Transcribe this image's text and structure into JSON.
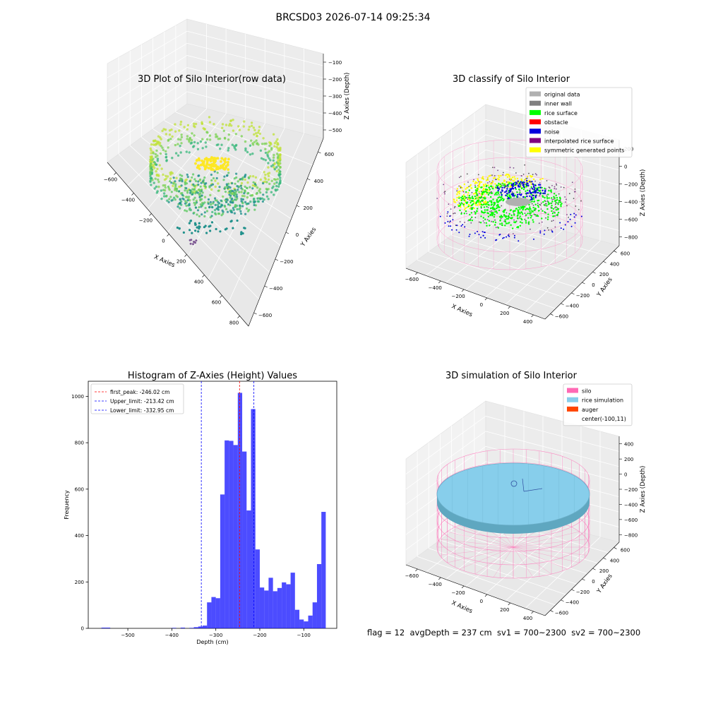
{
  "figure": {
    "title": "BRCSD03 2026-07-14 09:25:34",
    "footer": "flag = 12  avgDepth = 237 cm  sv1 = 700~2300  sv2 = 700~2300"
  },
  "chart_data": [
    {
      "type": "scatter",
      "subtype": "3d",
      "title": "3D Plot of Silo Interior(row data)",
      "xlabel": "X Axies",
      "ylabel": "Y Axies",
      "zlabel": "Z Axies (Depth)",
      "x_ticks": [
        "−600",
        "−400",
        "−200",
        "0",
        "200",
        "400",
        "600",
        "800"
      ],
      "y_ticks": [
        "−600",
        "−400",
        "−200",
        "0",
        "200",
        "400",
        "600"
      ],
      "z_ticks": [
        "−100",
        "−200",
        "−300",
        "−400",
        "−500"
      ],
      "xlim": [
        -700,
        800
      ],
      "ylim": [
        -650,
        650
      ],
      "zlim": [
        -560,
        -60
      ],
      "colormap": "viridis"
    },
    {
      "type": "scatter",
      "subtype": "3d",
      "title": "3D classify of Silo Interior",
      "xlabel": "X Axies",
      "ylabel": "Y Axies",
      "zlabel": "Z Axies (Depth)",
      "x_ticks": [
        "−600",
        "−400",
        "−200",
        "0",
        "200",
        "400"
      ],
      "y_ticks": [
        "−600",
        "−400",
        "−200",
        "0",
        "200",
        "400",
        "600"
      ],
      "z_ticks": [
        "200",
        "0",
        "−200",
        "−400",
        "−600",
        "−800"
      ],
      "legend_position": "top-right",
      "legend": [
        {
          "label": "original data",
          "color": "#b0b0b0"
        },
        {
          "label": "inner wall",
          "color": "#808080"
        },
        {
          "label": "rice surface",
          "color": "#00ff00"
        },
        {
          "label": "obstacle",
          "color": "#ff0000"
        },
        {
          "label": "noise",
          "color": "#0000dd"
        },
        {
          "label": "interpolated rice surface",
          "color": "#800080"
        },
        {
          "label": "symmetric generated points",
          "color": "#ffff00"
        }
      ]
    },
    {
      "type": "bar",
      "subtype": "histogram",
      "title": "Histogram of Z-Axies (Height) Values",
      "xlabel": "Depth (cm)",
      "ylabel": "Frequency",
      "xlim": [
        -590,
        -25
      ],
      "ylim": [
        0,
        1065
      ],
      "x_ticks": [
        -500,
        -400,
        -300,
        -200,
        -100
      ],
      "x_tick_labels": [
        "−500",
        "−400",
        "−300",
        "−200",
        "−100"
      ],
      "y_ticks": [
        0,
        200,
        400,
        600,
        800,
        1000
      ],
      "bin_width": 10,
      "bar_color": "#0000ff",
      "bins": [
        {
          "x0": -560,
          "value": 3
        },
        {
          "x0": -550,
          "value": 3
        },
        {
          "x0": -400,
          "value": 2
        },
        {
          "x0": -380,
          "value": 3
        },
        {
          "x0": -360,
          "value": 2
        },
        {
          "x0": -350,
          "value": 5
        },
        {
          "x0": -340,
          "value": 8
        },
        {
          "x0": -330,
          "value": 12
        },
        {
          "x0": -320,
          "value": 112
        },
        {
          "x0": -310,
          "value": 135
        },
        {
          "x0": -300,
          "value": 130
        },
        {
          "x0": -290,
          "value": 577
        },
        {
          "x0": -280,
          "value": 810
        },
        {
          "x0": -270,
          "value": 808
        },
        {
          "x0": -260,
          "value": 790
        },
        {
          "x0": -250,
          "value": 1015
        },
        {
          "x0": -240,
          "value": 762
        },
        {
          "x0": -230,
          "value": 508
        },
        {
          "x0": -220,
          "value": 945
        },
        {
          "x0": -210,
          "value": 340
        },
        {
          "x0": -200,
          "value": 176
        },
        {
          "x0": -190,
          "value": 163
        },
        {
          "x0": -180,
          "value": 218
        },
        {
          "x0": -170,
          "value": 160
        },
        {
          "x0": -160,
          "value": 174
        },
        {
          "x0": -150,
          "value": 198
        },
        {
          "x0": -140,
          "value": 190
        },
        {
          "x0": -130,
          "value": 240
        },
        {
          "x0": -120,
          "value": 80
        },
        {
          "x0": -110,
          "value": 38
        },
        {
          "x0": -100,
          "value": 30
        },
        {
          "x0": -90,
          "value": 55
        },
        {
          "x0": -80,
          "value": 112
        },
        {
          "x0": -70,
          "value": 277
        },
        {
          "x0": -60,
          "value": 502
        }
      ],
      "vlines": [
        {
          "label": "first_peak: -246.02 cm",
          "x": -246.02,
          "color": "#ff0000"
        },
        {
          "label": "Upper_limit: -213.42 cm",
          "x": -213.42,
          "color": "#0000ff"
        },
        {
          "label": "Lower_limit: -332.95 cm",
          "x": -332.95,
          "color": "#0000ff"
        }
      ],
      "legend_position": "top-left"
    },
    {
      "type": "scatter",
      "subtype": "3d-surface",
      "title": "3D simulation of Silo Interior",
      "xlabel": "X Axies",
      "ylabel": "Y Axies",
      "zlabel": "Z Axies (Depth)",
      "x_ticks": [
        "−600",
        "−400",
        "−200",
        "0",
        "200",
        "400"
      ],
      "y_ticks": [
        "−600",
        "−400",
        "−200",
        "0",
        "200",
        "400",
        "600"
      ],
      "z_ticks": [
        "400",
        "200",
        "0",
        "−200",
        "−400",
        "−600",
        "−800"
      ],
      "legend_position": "top-right",
      "legend": [
        {
          "label": "silo",
          "color": "#ff69b4"
        },
        {
          "label": "rice simulation",
          "color": "#87ceeb"
        },
        {
          "label": "auger",
          "color": "#ff4500"
        },
        {
          "label": "center(-100,11)",
          "color": ""
        }
      ]
    }
  ]
}
